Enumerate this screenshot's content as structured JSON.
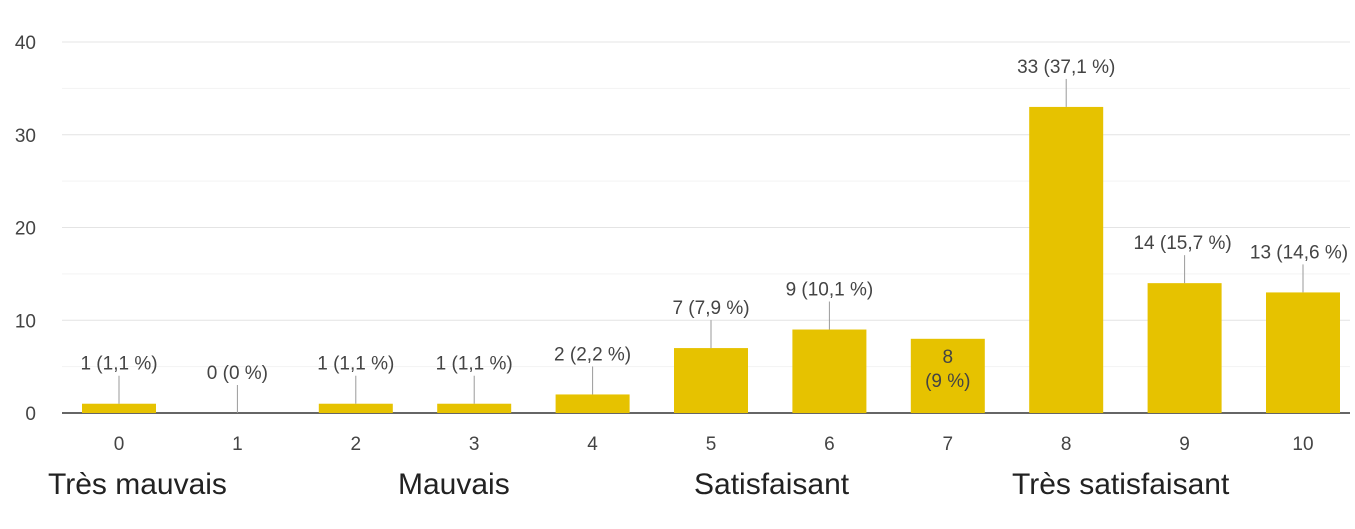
{
  "chart_data": {
    "type": "bar",
    "categories": [
      "0",
      "1",
      "2",
      "3",
      "4",
      "5",
      "6",
      "7",
      "8",
      "9",
      "10"
    ],
    "values": [
      1,
      0,
      1,
      1,
      2,
      7,
      9,
      8,
      33,
      14,
      13
    ],
    "data_labels": [
      "1 (1,1 %)",
      "0 (0 %)",
      "1 (1,1 %)",
      "1 (1,1 %)",
      "2 (2,2 %)",
      "7 (7,9 %)",
      "9 (10,1 %)",
      "8 (9 %)",
      "33 (37,1 %)",
      "14 (15,7 %)",
      "13 (14,6 %)"
    ],
    "ylim": [
      0,
      40
    ],
    "yticks": [
      "0",
      "10",
      "20",
      "30",
      "40"
    ],
    "grid": true,
    "title": "",
    "xlabel": "",
    "ylabel": "",
    "bar_color": "#e6c200"
  },
  "scale_labels": {
    "very_bad": "Très  mauvais",
    "bad": "Mauvais",
    "satisfactory": "Satisfaisant",
    "very_satisfactory": "Très satisfaisant"
  }
}
